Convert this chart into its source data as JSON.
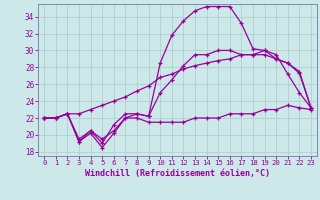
{
  "title": "",
  "xlabel": "Windchill (Refroidissement éolien,°C)",
  "bg_color": "#cce8e8",
  "grid_color": "#aacccc",
  "line_color": "#990099",
  "spine_color": "#7777aa",
  "xlim": [
    -0.5,
    23.5
  ],
  "ylim": [
    17.5,
    35.5
  ],
  "yticks": [
    18,
    20,
    22,
    24,
    26,
    28,
    30,
    32,
    34
  ],
  "xticks": [
    0,
    1,
    2,
    3,
    4,
    5,
    6,
    7,
    8,
    9,
    10,
    11,
    12,
    13,
    14,
    15,
    16,
    17,
    18,
    19,
    20,
    21,
    22,
    23
  ],
  "line1_x": [
    0,
    1,
    2,
    3,
    4,
    5,
    6,
    7,
    8,
    9,
    10,
    11,
    12,
    13,
    14,
    15,
    16,
    17,
    18,
    19,
    20,
    21,
    22,
    23
  ],
  "line1_y": [
    22.0,
    22.0,
    22.5,
    19.2,
    20.2,
    18.5,
    20.2,
    22.0,
    22.0,
    21.5,
    21.5,
    21.5,
    21.5,
    22.0,
    22.0,
    22.0,
    22.5,
    22.5,
    22.5,
    23.0,
    23.0,
    23.5,
    23.2,
    23.0
  ],
  "line2_x": [
    0,
    1,
    2,
    3,
    4,
    5,
    6,
    7,
    8,
    9,
    10,
    11,
    12,
    13,
    14,
    15,
    16,
    17,
    18,
    19,
    20,
    21,
    22,
    23
  ],
  "line2_y": [
    22.0,
    22.0,
    22.5,
    19.5,
    20.5,
    19.5,
    20.5,
    22.0,
    22.5,
    22.2,
    25.0,
    26.5,
    28.2,
    29.5,
    29.5,
    30.0,
    30.0,
    29.5,
    29.5,
    30.0,
    29.0,
    28.5,
    27.3,
    23.2
  ],
  "line3_x": [
    0,
    1,
    2,
    3,
    4,
    5,
    6,
    7,
    8,
    9,
    10,
    11,
    12,
    13,
    14,
    15,
    16,
    17,
    18,
    19,
    20,
    21,
    22,
    23
  ],
  "line3_y": [
    22.0,
    22.0,
    22.5,
    19.2,
    20.5,
    19.0,
    21.2,
    22.5,
    22.5,
    22.2,
    28.5,
    31.8,
    33.5,
    34.7,
    35.2,
    35.2,
    35.2,
    33.2,
    30.2,
    30.0,
    29.5,
    27.2,
    25.0,
    23.2
  ],
  "line4_x": [
    0,
    1,
    2,
    3,
    4,
    5,
    6,
    7,
    8,
    9,
    10,
    11,
    12,
    13,
    14,
    15,
    16,
    17,
    18,
    19,
    20,
    21,
    22,
    23
  ],
  "line4_y": [
    22.0,
    22.0,
    22.5,
    22.5,
    23.0,
    23.5,
    24.0,
    24.5,
    25.2,
    25.8,
    26.8,
    27.2,
    27.8,
    28.2,
    28.5,
    28.8,
    29.0,
    29.5,
    29.5,
    29.5,
    29.0,
    28.5,
    27.5,
    23.2
  ]
}
